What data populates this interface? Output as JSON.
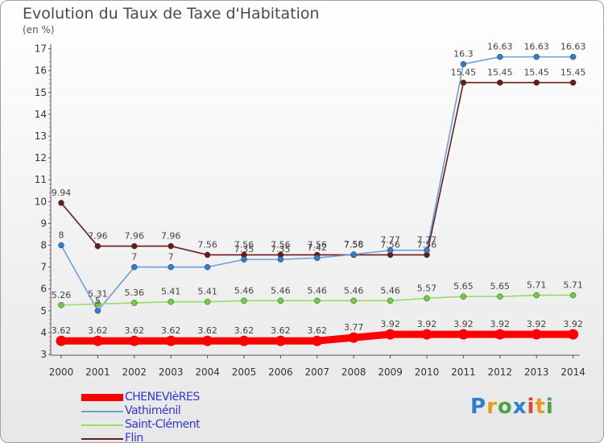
{
  "title": "Evolution du Taux de Taxe d'Habitation",
  "unit": "(en %)",
  "logo": "Proxiti",
  "legend": {
    "items": [
      {
        "label": "CHENEVIèRES",
        "color": "#ff0000"
      },
      {
        "label": "Vathiménil",
        "color": "#6b9fd8"
      },
      {
        "label": "Saint-Clément",
        "color": "#99dd66"
      },
      {
        "label": "Flin",
        "color": "#6b1a1a"
      }
    ]
  },
  "chart_data": {
    "type": "line",
    "title": "Evolution du Taux de Taxe d'Habitation",
    "ylabel": "(en %)",
    "xlabel": "",
    "ylim": [
      3,
      17
    ],
    "yticks": [
      3,
      4,
      5,
      6,
      7,
      8,
      9,
      10,
      11,
      12,
      13,
      14,
      15,
      16,
      17
    ],
    "grid": false,
    "legend_position": "bottom-left",
    "x": [
      "2000",
      "2001",
      "2002",
      "2003",
      "2004",
      "2005",
      "2006",
      "2007",
      "2008",
      "2009",
      "2010",
      "2011",
      "2012",
      "2013",
      "2014"
    ],
    "series": [
      {
        "name": "CHENEVIèRES",
        "color": "#ff0000",
        "marker": "#ff0000",
        "values": [
          3.62,
          3.62,
          3.62,
          3.62,
          3.62,
          3.62,
          3.62,
          3.62,
          3.77,
          3.92,
          3.92,
          3.92,
          3.92,
          3.92,
          3.92
        ],
        "labels": [
          "3.62",
          "3.62",
          "3.62",
          "3.62",
          "3.62",
          "3.62",
          "3.62",
          "3.62",
          "3.77",
          "3.92",
          "3.92",
          "3.92",
          "3.92",
          "3.92",
          "3.92"
        ]
      },
      {
        "name": "Vathiménil",
        "color": "#6b9fd8",
        "marker": "#2f7fd0",
        "values": [
          8,
          5,
          7,
          7,
          7,
          7.35,
          7.35,
          7.42,
          7.58,
          7.77,
          7.77,
          16.3,
          16.63,
          16.63,
          16.63
        ],
        "labels": [
          "8",
          "5",
          "7",
          "7",
          "",
          "7.35",
          "7.35",
          "7.42",
          "7.58",
          "7.77",
          "7.77",
          "16.3",
          "16.63",
          "16.63",
          "16.63"
        ]
      },
      {
        "name": "Saint-Clément",
        "color": "#99dd66",
        "marker": "#6fd03a",
        "values": [
          5.26,
          5.31,
          5.36,
          5.41,
          5.41,
          5.46,
          5.46,
          5.46,
          5.46,
          5.46,
          5.57,
          5.65,
          5.65,
          5.71,
          5.71
        ],
        "labels": [
          "5.26",
          "5.31",
          "5.36",
          "5.41",
          "5.41",
          "5.46",
          "5.46",
          "5.46",
          "5.46",
          "5.46",
          "5.57",
          "5.65",
          "5.65",
          "5.71",
          "5.71"
        ]
      },
      {
        "name": "Flin",
        "color": "#6b1a1a",
        "marker": "#6b1a1a",
        "values": [
          9.94,
          7.96,
          7.96,
          7.96,
          7.56,
          7.56,
          7.56,
          7.56,
          7.56,
          7.56,
          7.56,
          15.45,
          15.45,
          15.45,
          15.45
        ],
        "labels": [
          "9.94",
          "7.96",
          "7.96",
          "7.96",
          "7.56",
          "7.56",
          "7.56",
          "7.56",
          "7.56",
          "7.56",
          "7.56",
          "15.45",
          "15.45",
          "15.45",
          "15.45"
        ]
      }
    ]
  }
}
